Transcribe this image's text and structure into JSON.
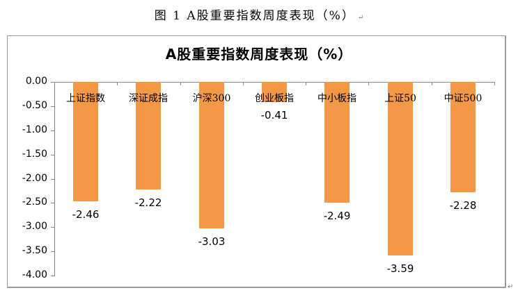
{
  "caption": "图 1 A股重要指数周度表现（%）",
  "chart_data": {
    "type": "bar",
    "title": "A股重要指数周度表现（%）",
    "categories": [
      "上证指数",
      "深证成指",
      "沪深300",
      "创业板指",
      "中小板指",
      "上证50",
      "中证500"
    ],
    "values": [
      -2.46,
      -2.22,
      -3.03,
      -0.41,
      -2.49,
      -3.59,
      -2.28
    ],
    "value_labels": [
      "-2.46",
      "-2.22",
      "-3.03",
      "-0.41",
      "-2.49",
      "-3.59",
      "-2.28"
    ],
    "xlabel": "",
    "ylabel": "",
    "ylim": [
      -4.0,
      0.0
    ],
    "yticks": [
      "0.00",
      "-0.50",
      "-1.00",
      "-1.50",
      "-2.00",
      "-2.50",
      "-3.00",
      "-3.50",
      "-4.00"
    ],
    "grid": false,
    "legend": null,
    "bar_color": "#f39847"
  }
}
